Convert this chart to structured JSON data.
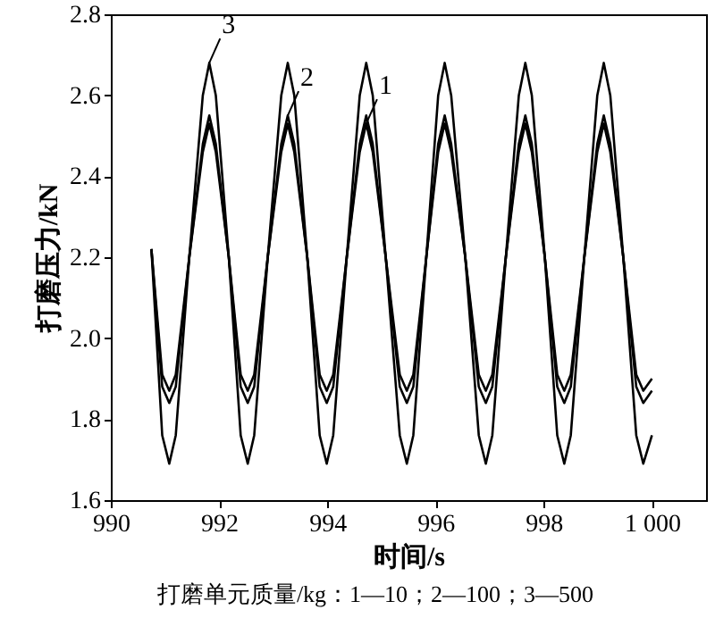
{
  "chart_data": {
    "type": "line",
    "xlabel": "时间/s",
    "ylabel": "打磨压力/kN",
    "x": [
      990.75,
      990.95,
      991.08,
      991.2,
      991.45,
      991.7,
      991.82,
      991.94,
      992.18,
      992.4,
      992.53,
      992.65,
      992.9,
      993.15,
      993.27,
      993.39,
      993.63,
      993.86,
      993.99,
      994.11,
      994.36,
      994.6,
      994.72,
      994.84,
      995.08,
      995.34,
      995.47,
      995.59,
      995.83,
      996.05,
      996.17,
      996.29,
      996.55,
      996.8,
      996.93,
      997.05,
      997.3,
      997.54,
      997.66,
      997.78,
      998.02,
      998.25,
      998.38,
      998.5,
      998.75,
      998.99,
      999.11,
      999.23,
      999.47,
      999.71,
      999.84,
      1000.0
    ],
    "series": [
      {
        "color": "#000000",
        "values": [
          2.22,
          1.91,
          1.87,
          1.91,
          2.2,
          2.46,
          2.53,
          2.46,
          2.2,
          1.91,
          1.87,
          1.91,
          2.2,
          2.46,
          2.53,
          2.46,
          2.2,
          1.91,
          1.87,
          1.91,
          2.2,
          2.46,
          2.53,
          2.46,
          2.2,
          1.91,
          1.87,
          1.91,
          2.2,
          2.46,
          2.53,
          2.46,
          2.2,
          1.91,
          1.87,
          1.91,
          2.2,
          2.46,
          2.53,
          2.46,
          2.2,
          1.91,
          1.87,
          1.91,
          2.2,
          2.46,
          2.53,
          2.46,
          2.2,
          1.91,
          1.87,
          1.9
        ]
      },
      {
        "color": "#000000",
        "values": [
          2.22,
          1.88,
          1.84,
          1.88,
          2.2,
          2.48,
          2.55,
          2.48,
          2.2,
          1.88,
          1.84,
          1.88,
          2.2,
          2.48,
          2.55,
          2.48,
          2.2,
          1.88,
          1.84,
          1.88,
          2.2,
          2.48,
          2.55,
          2.48,
          2.2,
          1.88,
          1.84,
          1.88,
          2.2,
          2.48,
          2.55,
          2.48,
          2.2,
          1.88,
          1.84,
          1.88,
          2.2,
          2.48,
          2.55,
          2.48,
          2.2,
          1.88,
          1.84,
          1.88,
          2.2,
          2.48,
          2.55,
          2.48,
          2.2,
          1.88,
          1.84,
          1.87
        ]
      },
      {
        "color": "#000000",
        "values": [
          2.22,
          1.76,
          1.69,
          1.76,
          2.2,
          2.6,
          2.68,
          2.6,
          2.2,
          1.76,
          1.69,
          1.76,
          2.2,
          2.6,
          2.68,
          2.6,
          2.2,
          1.76,
          1.69,
          1.76,
          2.2,
          2.6,
          2.68,
          2.6,
          2.2,
          1.76,
          1.69,
          1.76,
          2.2,
          2.6,
          2.68,
          2.6,
          2.2,
          1.76,
          1.69,
          1.76,
          2.2,
          2.6,
          2.68,
          2.6,
          2.2,
          1.76,
          1.69,
          1.76,
          2.2,
          2.6,
          2.68,
          2.6,
          2.2,
          1.76,
          1.69,
          1.76
        ]
      }
    ],
    "xlim": [
      990,
      1001
    ],
    "xticks": [
      990,
      992,
      994,
      996,
      998,
      {
        "value": 1000,
        "label": "1 000"
      }
    ],
    "ylim": [
      1.6,
      2.8
    ],
    "yticks": [
      1.6,
      1.8,
      {
        "value": 2,
        "label": "2.0"
      },
      2.2,
      2.4,
      2.6,
      2.8
    ],
    "annotations": [
      {
        "text": "3",
        "x": 991.82,
        "y": 2.68
      },
      {
        "text": "2",
        "x": 993.27,
        "y": 2.55
      },
      {
        "text": "1",
        "x": 994.72,
        "y": 2.53
      },
      "打磨单元质量/kg：1—10；2—100；3—500"
    ],
    "grid": false,
    "marker": "none",
    "line_style": "solid"
  }
}
